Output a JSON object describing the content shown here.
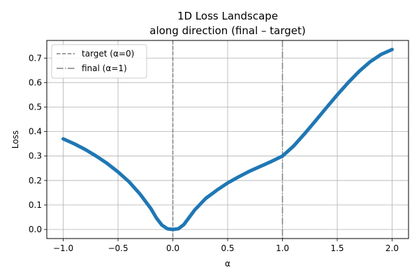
{
  "chart_data": {
    "type": "line",
    "title": [
      "1D Loss Landscape",
      "along direction (final – target)"
    ],
    "xlabel": "α",
    "ylabel": "Loss",
    "xlim": [
      -1.15,
      2.15
    ],
    "ylim": [
      -0.037,
      0.772
    ],
    "xticks": [
      -1.0,
      -0.5,
      0.0,
      0.5,
      1.0,
      1.5,
      2.0
    ],
    "xtick_labels": [
      "−1.0",
      "−0.5",
      "0.0",
      "0.5",
      "1.0",
      "1.5",
      "2.0"
    ],
    "yticks": [
      0.0,
      0.1,
      0.2,
      0.3,
      0.4,
      0.5,
      0.6,
      0.7
    ],
    "ytick_labels": [
      "0.0",
      "0.1",
      "0.2",
      "0.3",
      "0.4",
      "0.5",
      "0.6",
      "0.7"
    ],
    "grid": true,
    "legend_position": "top-left",
    "series": [
      {
        "color": "#1f77b4",
        "x": [
          -1.0,
          -0.9,
          -0.8,
          -0.7,
          -0.6,
          -0.5,
          -0.4,
          -0.3,
          -0.2,
          -0.15,
          -0.1,
          -0.05,
          0.0,
          0.05,
          0.1,
          0.15,
          0.2,
          0.3,
          0.4,
          0.5,
          0.6,
          0.7,
          0.8,
          0.9,
          1.0,
          1.1,
          1.2,
          1.3,
          1.4,
          1.5,
          1.6,
          1.7,
          1.8,
          1.9,
          2.0
        ],
        "y": [
          0.37,
          0.35,
          0.327,
          0.3,
          0.27,
          0.235,
          0.195,
          0.145,
          0.085,
          0.047,
          0.018,
          0.003,
          0.0,
          0.003,
          0.02,
          0.05,
          0.08,
          0.127,
          0.16,
          0.19,
          0.215,
          0.238,
          0.258,
          0.278,
          0.3,
          0.34,
          0.39,
          0.443,
          0.497,
          0.55,
          0.6,
          0.646,
          0.685,
          0.715,
          0.735
        ]
      }
    ],
    "vlines": [
      {
        "x": 0.0,
        "label": "target (α=0)",
        "style": "dashed",
        "color": "#808080"
      },
      {
        "x": 1.0,
        "label": "final  (α=1)",
        "style": "dashdot",
        "color": "#808080"
      }
    ]
  }
}
